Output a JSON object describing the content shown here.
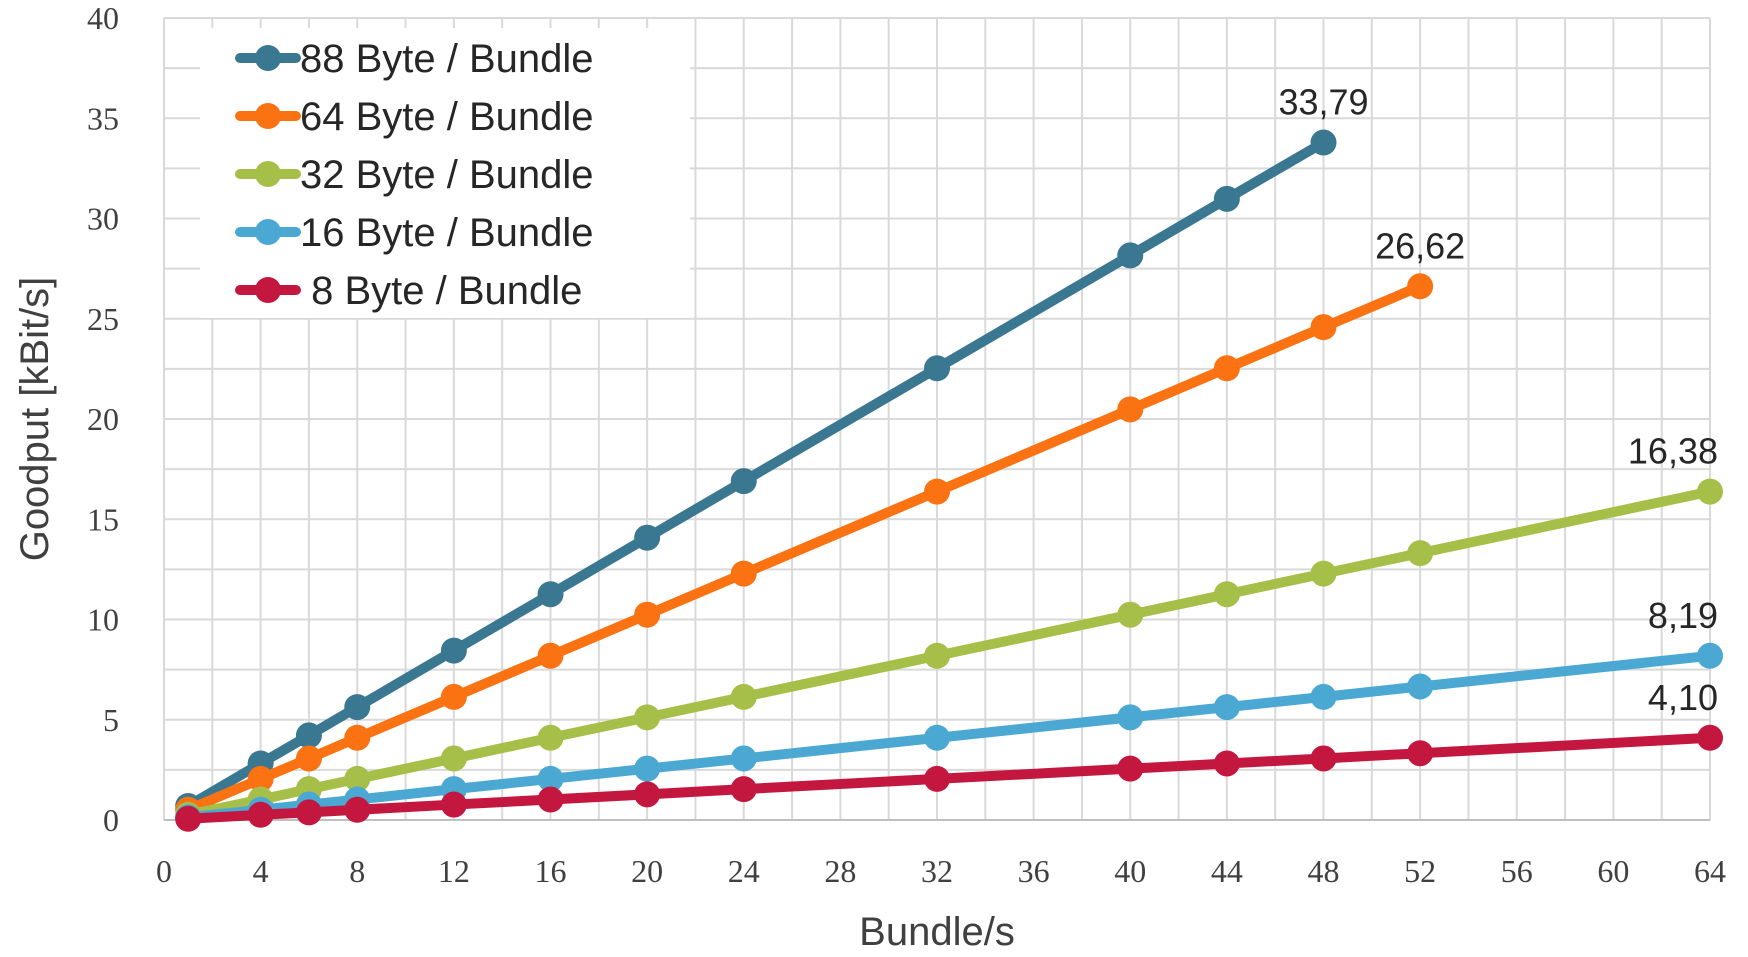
{
  "chart_data": {
    "type": "line",
    "xlabel": "Bundle/s",
    "ylabel": "Goodput [kBit/s]",
    "xlim": [
      0,
      64
    ],
    "ylim": [
      0,
      40
    ],
    "x_ticks": [
      0,
      4,
      8,
      12,
      16,
      20,
      24,
      28,
      32,
      36,
      40,
      44,
      48,
      52,
      56,
      60,
      64
    ],
    "x_tick_labels": [
      "0",
      "4",
      "8",
      "12",
      "16",
      "20",
      "24",
      "28",
      "32",
      "36",
      "40",
      "44",
      "48",
      "52",
      "56",
      "60",
      "64"
    ],
    "y_ticks": [
      0,
      5,
      10,
      15,
      20,
      25,
      30,
      35,
      40
    ],
    "y_tick_labels": [
      "0",
      "5",
      "10",
      "15",
      "20",
      "25",
      "30",
      "35",
      "40"
    ],
    "grid": true,
    "legend_position": "top-left",
    "series": [
      {
        "name": "88 Byte / Bundle",
        "color": "#3a7891",
        "x": [
          1,
          4,
          6,
          8,
          12,
          16,
          20,
          24,
          32,
          40,
          44,
          48
        ],
        "values": [
          0.7,
          2.82,
          4.22,
          5.63,
          8.45,
          11.26,
          14.08,
          16.9,
          22.53,
          28.16,
          30.98,
          33.79
        ],
        "end_label": "33,79"
      },
      {
        "name": "64 Byte / Bundle",
        "color": "#fa7212",
        "x": [
          1,
          4,
          6,
          8,
          12,
          16,
          20,
          24,
          32,
          40,
          44,
          48,
          52
        ],
        "values": [
          0.51,
          2.05,
          3.07,
          4.1,
          6.14,
          8.19,
          10.24,
          12.29,
          16.38,
          20.48,
          22.53,
          24.58,
          26.62
        ],
        "end_label": "26,62"
      },
      {
        "name": "32 Byte / Bundle",
        "color": "#a6bf48",
        "x": [
          1,
          4,
          6,
          8,
          12,
          16,
          20,
          24,
          32,
          40,
          44,
          48,
          52,
          64
        ],
        "values": [
          0.26,
          1.02,
          1.54,
          2.05,
          3.07,
          4.1,
          5.12,
          6.14,
          8.19,
          10.24,
          11.26,
          12.29,
          13.31,
          16.38
        ],
        "end_label": "16,38"
      },
      {
        "name": "16 Byte / Bundle",
        "color": "#4aa8d3",
        "x": [
          1,
          4,
          6,
          8,
          12,
          16,
          20,
          24,
          32,
          40,
          44,
          48,
          52,
          64
        ],
        "values": [
          0.13,
          0.51,
          0.77,
          1.02,
          1.54,
          2.05,
          2.56,
          3.07,
          4.1,
          5.12,
          5.63,
          6.14,
          6.66,
          8.19
        ],
        "end_label": "8,19"
      },
      {
        "name": " 8 Byte / Bundle",
        "color": "#c4173f",
        "x": [
          1,
          4,
          6,
          8,
          12,
          16,
          20,
          24,
          32,
          40,
          44,
          48,
          52,
          64
        ],
        "values": [
          0.06,
          0.26,
          0.38,
          0.51,
          0.77,
          1.02,
          1.28,
          1.54,
          2.05,
          2.56,
          2.82,
          3.07,
          3.33,
          4.1
        ],
        "end_label": "4,10"
      }
    ]
  }
}
